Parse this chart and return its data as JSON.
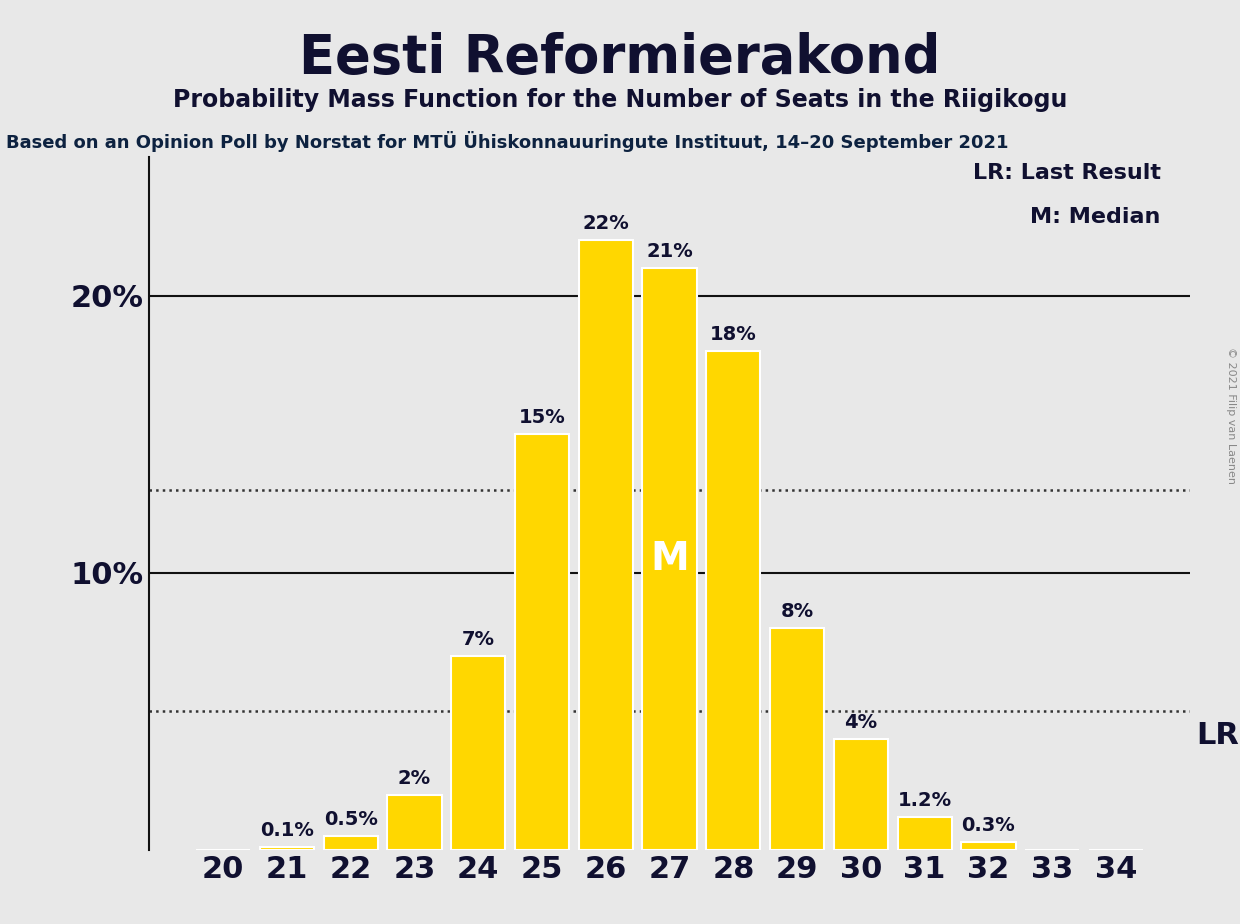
{
  "title": "Eesti Reformierakond",
  "subtitle": "Probability Mass Function for the Number of Seats in the Riigikogu",
  "source_line": "Based on an Opinion Poll by Norstat for MTÜ Ühiskonnauuringute Instituut, 14–20 September 2021",
  "copyright": "© 2021 Filip van Laenen",
  "categories": [
    20,
    21,
    22,
    23,
    24,
    25,
    26,
    27,
    28,
    29,
    30,
    31,
    32,
    33,
    34
  ],
  "values": [
    0.0,
    0.1,
    0.5,
    2.0,
    7.0,
    15.0,
    22.0,
    21.0,
    18.0,
    8.0,
    4.0,
    1.2,
    0.3,
    0.0,
    0.0
  ],
  "bar_color": "#FFD700",
  "bar_edge_color": "#FFFFFF",
  "background_color": "#E8E8E8",
  "text_color": "#101030",
  "title_fontsize": 38,
  "subtitle_fontsize": 17,
  "source_fontsize": 13,
  "label_fontsize": 14,
  "tick_fontsize": 22,
  "ytick_fontsize": 22,
  "median_seat": 27,
  "median_label": "M",
  "median_label_fontsize": 28,
  "dotted_line_1": 13.0,
  "dotted_line_2": 5.0,
  "ylim_max": 25,
  "legend_lr": "LR: Last Result",
  "legend_m": "M: Median",
  "legend_fontsize": 16,
  "lr_label": "LR",
  "lr_fontsize": 22
}
